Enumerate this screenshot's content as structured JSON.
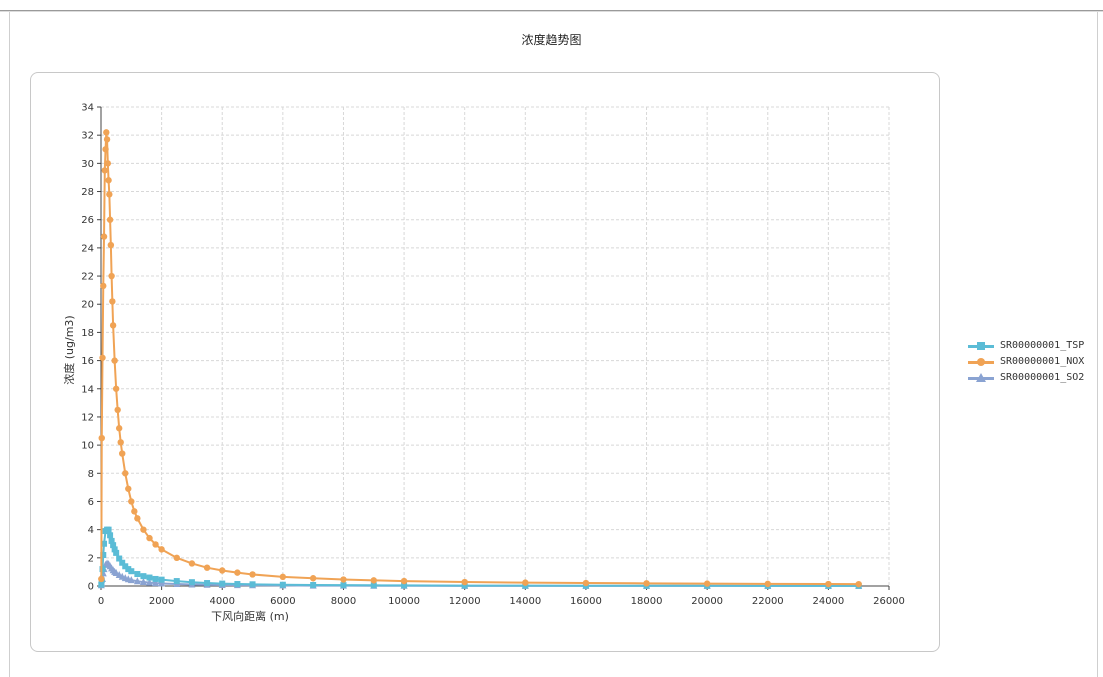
{
  "title": "浓度趋势图",
  "chart_data": {
    "type": "scatter",
    "title": "浓度趋势图",
    "xlabel": "下风向距离 (m)",
    "ylabel": "浓度 (ug/m3)",
    "xlim": [
      0,
      26000
    ],
    "ylim": [
      0,
      34
    ],
    "x_ticks": [
      "0",
      "2000",
      "4000",
      "6000",
      "8000",
      "10000",
      "12000",
      "14000",
      "16000",
      "18000",
      "20000",
      "22000",
      "24000",
      "26000"
    ],
    "y_ticks": [
      "0",
      "2",
      "4",
      "6",
      "8",
      "10",
      "12",
      "14",
      "16",
      "18",
      "20",
      "22",
      "24",
      "26",
      "28",
      "30",
      "32",
      "34"
    ],
    "grid": true,
    "legend_position": "right",
    "series": [
      {
        "name": "SR00000001_TSP",
        "color": "#5bbcd6",
        "marker": "square",
        "x": [
          10,
          25,
          50,
          75,
          100,
          150,
          200,
          250,
          300,
          350,
          400,
          450,
          500,
          600,
          700,
          800,
          900,
          1000,
          1200,
          1400,
          1600,
          1800,
          2000,
          2500,
          3000,
          3500,
          4000,
          4500,
          5000,
          6000,
          7000,
          8000,
          9000,
          10000,
          12000,
          14000,
          16000,
          18000,
          20000,
          22000,
          24000,
          25000
        ],
        "y": [
          0.1,
          0.4,
          1.2,
          2.2,
          3.0,
          3.9,
          4.0,
          4.0,
          3.6,
          3.2,
          2.9,
          2.6,
          2.35,
          1.95,
          1.65,
          1.4,
          1.2,
          1.05,
          0.85,
          0.7,
          0.6,
          0.5,
          0.45,
          0.35,
          0.27,
          0.21,
          0.17,
          0.14,
          0.12,
          0.09,
          0.07,
          0.06,
          0.05,
          0.04,
          0.03,
          0.025,
          0.02,
          0.017,
          0.015,
          0.013,
          0.011,
          0.01
        ]
      },
      {
        "name": "SR00000001_NOX",
        "color": "#f0a355",
        "marker": "circle",
        "x": [
          10,
          25,
          50,
          75,
          100,
          125,
          150,
          175,
          200,
          225,
          250,
          275,
          300,
          325,
          350,
          375,
          400,
          450,
          500,
          550,
          600,
          650,
          700,
          800,
          900,
          1000,
          1100,
          1200,
          1400,
          1600,
          1800,
          2000,
          2500,
          3000,
          3500,
          4000,
          4500,
          5000,
          6000,
          7000,
          8000,
          9000,
          10000,
          12000,
          14000,
          16000,
          18000,
          20000,
          22000,
          24000,
          25000
        ],
        "y": [
          0.5,
          10.5,
          16.2,
          21.3,
          24.8,
          29.5,
          31.0,
          32.2,
          31.7,
          30.0,
          28.8,
          27.8,
          26.0,
          24.2,
          22.0,
          20.2,
          18.5,
          16.0,
          14.0,
          12.5,
          11.2,
          10.2,
          9.4,
          8.0,
          6.9,
          6.0,
          5.3,
          4.8,
          4.0,
          3.4,
          2.95,
          2.6,
          2.0,
          1.6,
          1.3,
          1.1,
          0.95,
          0.82,
          0.65,
          0.55,
          0.46,
          0.4,
          0.35,
          0.28,
          0.24,
          0.21,
          0.19,
          0.17,
          0.15,
          0.14,
          0.13
        ]
      },
      {
        "name": "SR00000001_SO2",
        "color": "#8aa3d2",
        "marker": "triangle",
        "x": [
          10,
          25,
          50,
          75,
          100,
          150,
          200,
          250,
          300,
          350,
          400,
          450,
          500,
          600,
          700,
          800,
          900,
          1000,
          1200,
          1400,
          1600,
          1800,
          2000,
          2500,
          3000,
          3500,
          4000,
          4500,
          5000,
          6000,
          7000,
          8000,
          9000,
          10000,
          12000,
          14000,
          16000,
          18000,
          20000,
          22000,
          24000,
          25000
        ],
        "y": [
          0.05,
          0.2,
          0.5,
          0.9,
          1.2,
          1.5,
          1.6,
          1.55,
          1.4,
          1.25,
          1.12,
          1.0,
          0.92,
          0.78,
          0.66,
          0.56,
          0.48,
          0.42,
          0.34,
          0.28,
          0.24,
          0.2,
          0.18,
          0.14,
          0.11,
          0.09,
          0.07,
          0.06,
          0.05,
          0.04,
          0.03,
          0.025,
          0.02,
          0.017,
          0.013,
          0.011,
          0.009,
          0.008,
          0.007,
          0.006,
          0.005,
          0.005
        ]
      }
    ]
  }
}
